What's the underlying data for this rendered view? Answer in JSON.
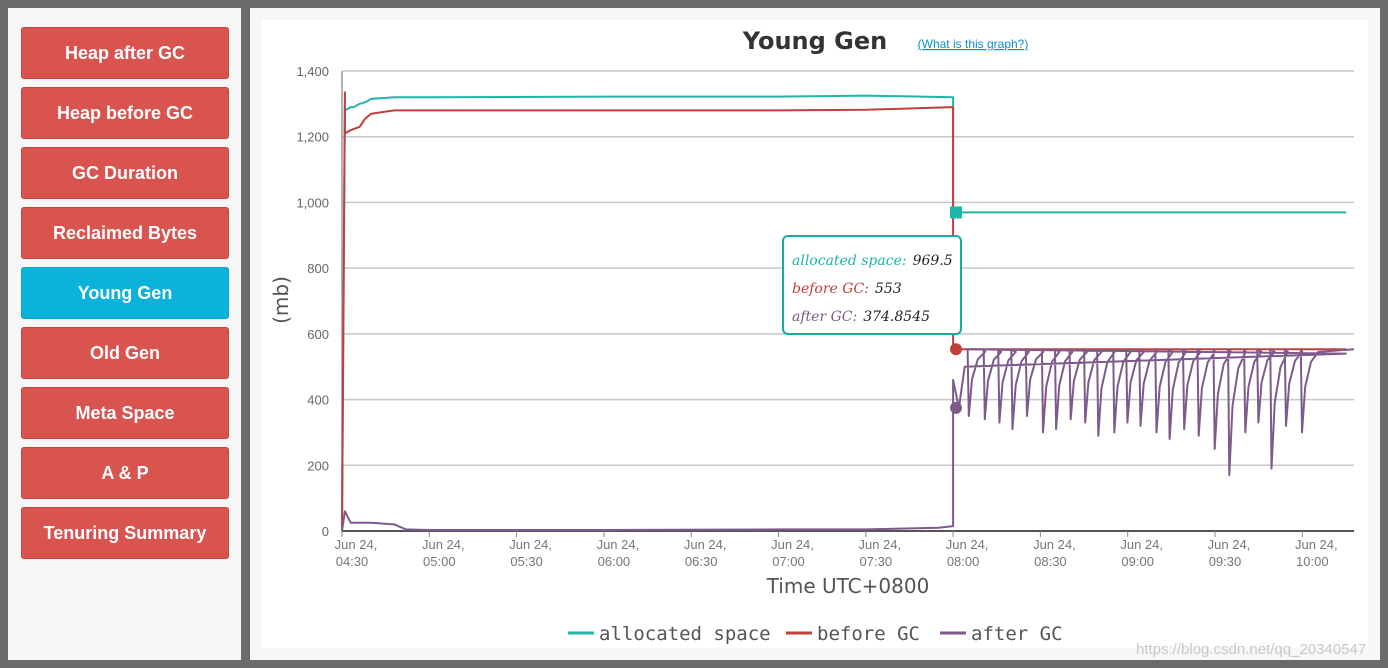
{
  "sidebar": {
    "items": [
      {
        "label": "Heap after GC",
        "name": "heap-after-gc",
        "active": false
      },
      {
        "label": "Heap before GC",
        "name": "heap-before-gc",
        "active": false
      },
      {
        "label": "GC Duration",
        "name": "gc-duration",
        "active": false
      },
      {
        "label": "Reclaimed Bytes",
        "name": "reclaimed-bytes",
        "active": false
      },
      {
        "label": "Young Gen",
        "name": "young-gen",
        "active": true
      },
      {
        "label": "Old Gen",
        "name": "old-gen",
        "active": false
      },
      {
        "label": "Meta Space",
        "name": "meta-space",
        "active": false
      },
      {
        "label": "A & P",
        "name": "a-and-p",
        "active": false
      },
      {
        "label": "Tenuring Summary",
        "name": "tenuring-summary",
        "active": false
      }
    ]
  },
  "colors": {
    "accent": "#0bb3db",
    "button": "#d9534f",
    "allocated": "#1fb5a8",
    "before": "#c0403c",
    "after": "#7e5a8c"
  },
  "chart_data": {
    "type": "line",
    "title": "Young Gen",
    "help_link": "(What is this graph?)",
    "ylabel": "(mb)",
    "xlabel": "Time UTC+0800",
    "ylim": [
      0,
      1400
    ],
    "yticks": [
      0,
      200,
      400,
      600,
      800,
      "1,000",
      "1,200",
      "1,400"
    ],
    "xlim": [
      "2021-06-24 04:30",
      "2021-06-24 10:15"
    ],
    "xticks": [
      {
        "t": "04:30",
        "line1": "Jun 24,",
        "line2": "04:30"
      },
      {
        "t": "05:00",
        "line1": "Jun 24,",
        "line2": "05:00"
      },
      {
        "t": "05:30",
        "line1": "Jun 24,",
        "line2": "05:30"
      },
      {
        "t": "06:00",
        "line1": "Jun 24,",
        "line2": "06:00"
      },
      {
        "t": "06:30",
        "line1": "Jun 24,",
        "line2": "06:30"
      },
      {
        "t": "07:00",
        "line1": "Jun 24,",
        "line2": "07:00"
      },
      {
        "t": "07:30",
        "line1": "Jun 24,",
        "line2": "07:30"
      },
      {
        "t": "08:00",
        "line1": "Jun 24,",
        "line2": "08:00"
      },
      {
        "t": "08:30",
        "line1": "Jun 24,",
        "line2": "08:30"
      },
      {
        "t": "09:00",
        "line1": "Jun 24,",
        "line2": "09:00"
      },
      {
        "t": "09:30",
        "line1": "Jun 24,",
        "line2": "09:30"
      },
      {
        "t": "10:00",
        "line1": "Jun 24,",
        "line2": "10:00"
      }
    ],
    "grid": true,
    "legend_position": "bottom",
    "series": [
      {
        "name": "allocated space",
        "color": "#1fb5a8",
        "x": [
          "04:30",
          "04:31",
          "04:31",
          "04:33",
          "04:34",
          "04:36",
          "04:38",
          "04:40",
          "04:48",
          "05:00",
          "06:00",
          "07:00",
          "07:30",
          "08:00",
          "08:00",
          "08:00",
          "10:15"
        ],
        "values": [
          0,
          1290,
          1280,
          1290,
          1290,
          1300,
          1305,
          1315,
          1320,
          1320,
          1322,
          1322,
          1325,
          1320,
          1320,
          969.5,
          969.5
        ]
      },
      {
        "name": "before GC",
        "color": "#c0403c",
        "x": [
          "04:30",
          "04:31",
          "04:31",
          "04:33",
          "04:36",
          "04:38",
          "04:40",
          "04:48",
          "05:00",
          "06:00",
          "07:00",
          "07:30",
          "08:00",
          "08:00",
          "08:00",
          "10:15"
        ],
        "values": [
          0,
          1335,
          1210,
          1220,
          1230,
          1255,
          1270,
          1280,
          1280,
          1280,
          1280,
          1282,
          1290,
          840,
          553,
          553
        ]
      },
      {
        "name": "after GC",
        "color": "#7e5a8c",
        "x": [
          "04:30",
          "04:31",
          "04:33",
          "04:40",
          "04:48",
          "04:52",
          "05:00",
          "06:00",
          "07:00",
          "07:30",
          "07:55",
          "08:00",
          "08:00",
          "08:02",
          "08:04",
          "10:15"
        ],
        "values": [
          0,
          60,
          25,
          25,
          20,
          5,
          3,
          3,
          5,
          5,
          10,
          15,
          460,
          374.8545,
          500,
          540
        ],
        "sawtooth_after_0805": {
          "period_minutes": 10,
          "top": 553,
          "dips": [
            350,
            340,
            330,
            310,
            350,
            300,
            310,
            340,
            330,
            290,
            300,
            330,
            320,
            300,
            280,
            310,
            290,
            250,
            170,
            300,
            330,
            190,
            320,
            300
          ]
        }
      }
    ]
  },
  "tooltip": {
    "rows": [
      {
        "label": "allocated space:",
        "value": "969.5",
        "color": "#1fb5a8"
      },
      {
        "label": "before GC:",
        "value": "553",
        "color": "#c0403c"
      },
      {
        "label": "after GC:",
        "value": "374.8545",
        "color": "#7e5a8c"
      }
    ]
  },
  "watermark": "https://blog.csdn.net/qq_20340547"
}
